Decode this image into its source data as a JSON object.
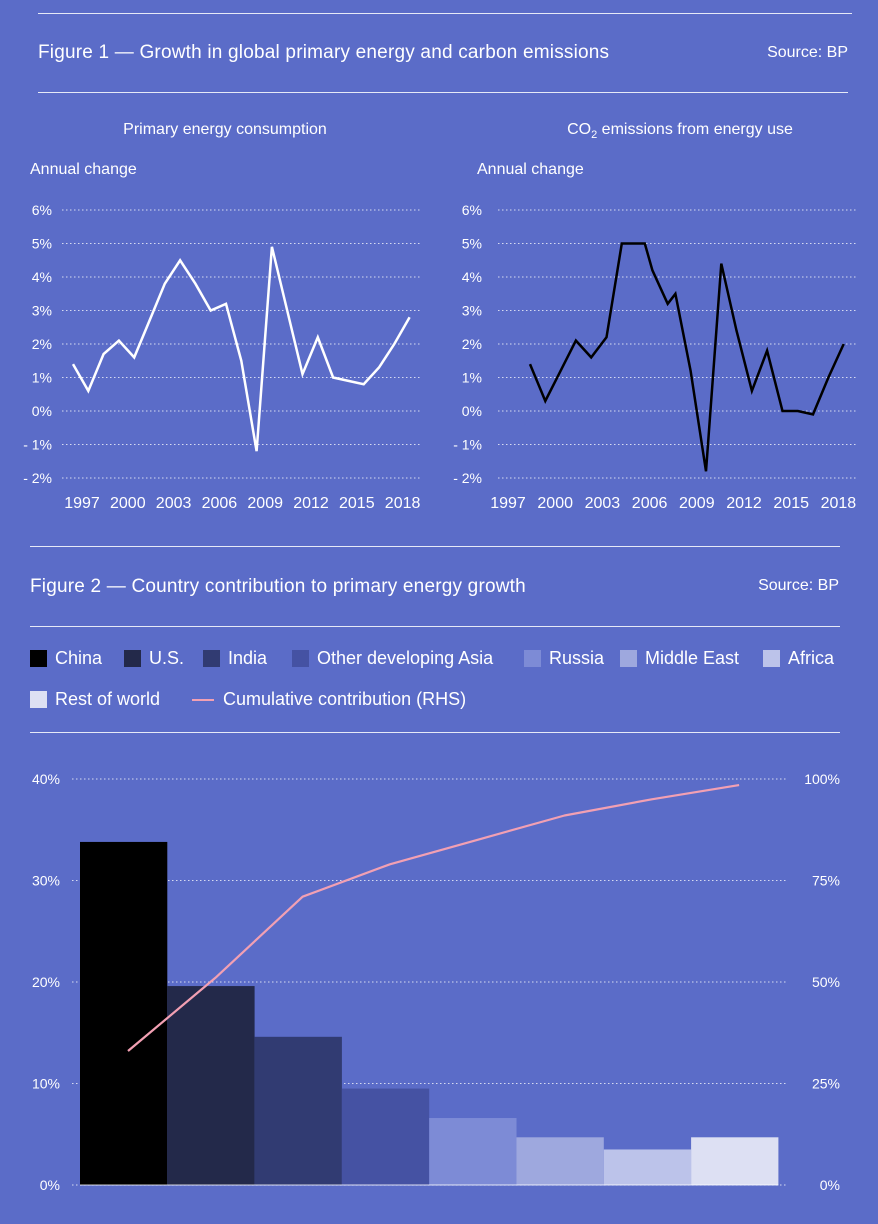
{
  "figure1": {
    "title": "Figure 1 — Growth in global primary energy and carbon emissions",
    "source": "Source: BP",
    "charts": [
      {
        "subtitle": "Primary energy consumption",
        "ylabel": "Annual change",
        "color": "#ffffff"
      },
      {
        "subtitle_main": "CO",
        "subtitle_sub": "2",
        "subtitle_rest": " emissions from energy use",
        "ylabel": "Annual change",
        "color": "#000000"
      }
    ]
  },
  "figure2": {
    "title": "Figure 2 — Country contribution to primary energy growth",
    "source": "Source: BP",
    "legend": [
      {
        "label": "China",
        "color": "#000000"
      },
      {
        "label": "U.S.",
        "color": "#23294a"
      },
      {
        "label": "India",
        "color": "#313b72"
      },
      {
        "label": "Other developing Asia",
        "color": "#4552a3"
      },
      {
        "label": "Russia",
        "color": "#7d8bd6"
      },
      {
        "label": "Middle East",
        "color": "#9ea8de"
      },
      {
        "label": "Africa",
        "color": "#bcc3ea"
      },
      {
        "label": "Rest of world",
        "color": "#dde0f3"
      }
    ],
    "line_legend": {
      "label": "Cumulative contribution (RHS)",
      "color": "#f2a0b3"
    }
  },
  "chart_data": [
    {
      "type": "line",
      "title": "Primary energy consumption",
      "ylabel": "Annual change",
      "x": [
        1996,
        1997,
        1998,
        1999,
        2000,
        2001,
        2002,
        2003,
        2004,
        2005,
        2006,
        2007,
        2008,
        2009,
        2010,
        2011,
        2012,
        2013,
        2014,
        2015,
        2016,
        2017,
        2018
      ],
      "y": [
        1.4,
        0.6,
        1.7,
        2.1,
        1.6,
        2.7,
        3.8,
        4.5,
        3.8,
        3.0,
        3.2,
        1.5,
        -1.2,
        4.9,
        3.0,
        1.1,
        2.2,
        1.0,
        0.9,
        0.8,
        1.3,
        2.0,
        2.8
      ],
      "ylim": [
        -2,
        6
      ],
      "yticks": [
        "6%",
        "5%",
        "4%",
        "3%",
        "2%",
        "1%",
        "0%",
        "- 1%",
        "- 2%"
      ],
      "xticks": [
        "1997",
        "2000",
        "2003",
        "2006",
        "2009",
        "2012",
        "2015",
        "2018"
      ]
    },
    {
      "type": "line",
      "title": "CO2 emissions from energy use",
      "ylabel": "Annual change",
      "x": [
        1998,
        1999,
        2000,
        2001,
        2002,
        2003,
        2004,
        2004.5,
        2005.5,
        2006,
        2007,
        2007.5,
        2008.5,
        2009.5,
        2010.5,
        2011.5,
        2012.5,
        2013.5,
        2014.5,
        2015.5,
        2016.5,
        2017.5,
        2018.5
      ],
      "y": [
        1.4,
        0.3,
        1.2,
        2.1,
        1.6,
        2.2,
        5.0,
        5.0,
        5.0,
        4.2,
        3.2,
        3.5,
        1.2,
        -1.8,
        4.4,
        2.4,
        0.6,
        1.8,
        0.0,
        0.0,
        -0.1,
        1.0,
        2.0
      ],
      "ylim": [
        -2,
        6
      ],
      "yticks": [
        "6%",
        "5%",
        "4%",
        "3%",
        "2%",
        "1%",
        "0%",
        "- 1%",
        "- 2%"
      ],
      "xticks": [
        "1997",
        "2000",
        "2003",
        "2006",
        "2009",
        "2012",
        "2015",
        "2018"
      ]
    },
    {
      "type": "bar",
      "title": "Country contribution to primary energy growth",
      "categories": [
        "China",
        "U.S.",
        "India",
        "Other developing Asia",
        "Russia",
        "Middle East",
        "Africa",
        "Rest of world"
      ],
      "values": [
        33.8,
        19.6,
        14.6,
        9.5,
        6.6,
        4.7,
        3.5,
        4.7
      ],
      "ylim": [
        0,
        40
      ],
      "yticks_left": [
        "40%",
        "30%",
        "20%",
        "10%",
        "0%"
      ],
      "line": {
        "name": "Cumulative contribution (RHS)",
        "values": [
          33,
          51,
          71,
          79,
          85,
          91,
          95,
          98.5
        ],
        "ylim": [
          0,
          100
        ],
        "yticks_right": [
          "100%",
          "75%",
          "50%",
          "25%",
          "0%"
        ]
      }
    }
  ]
}
